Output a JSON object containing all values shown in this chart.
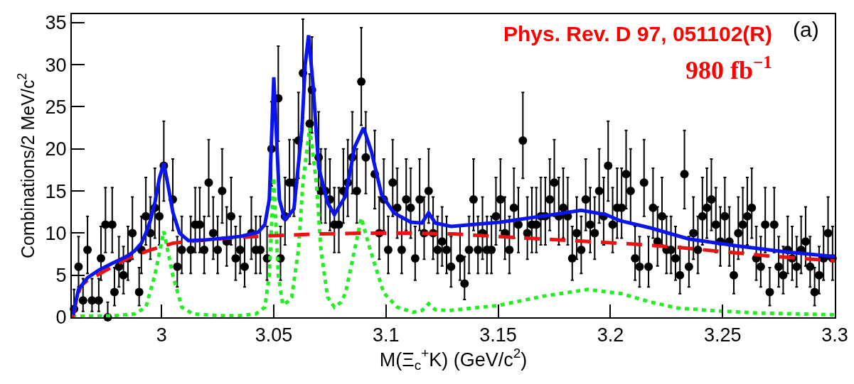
{
  "chart_data": {
    "type": "scatter",
    "xlabel": "M(Ξ$_{c}$$^{+}$K) (GeV/c$^{2}$)",
    "ylabel": "Combinations/2 MeV/c$^{2}$",
    "annotations": [
      "Phys. Rev. D 97, 051102(R)",
      "980 fb$^{−1}$",
      "(a)"
    ],
    "xlim": [
      2.96,
      3.3
    ],
    "xticks": [
      3,
      3.05,
      3.1,
      3.15,
      3.2,
      3.25,
      3.3
    ],
    "ylim": [
      0,
      36
    ],
    "yticks": [
      0,
      5,
      10,
      15,
      20,
      25,
      30,
      35
    ],
    "grid": false,
    "series": [
      {
        "type": "scatter",
        "marker": "circle",
        "color": "#000000",
        "x": [
          2.961,
          2.963,
          2.965,
          2.967,
          2.969,
          2.972,
          2.973,
          2.975,
          2.976,
          2.978,
          2.979,
          2.981,
          2.983,
          2.985,
          2.987,
          2.99,
          2.991,
          2.993,
          2.995,
          2.997,
          2.999,
          3.001,
          3.005,
          3.007,
          3.009,
          3.013,
          3.015,
          3.017,
          3.019,
          3.021,
          3.023,
          3.025,
          3.027,
          3.029,
          3.031,
          3.033,
          3.035,
          3.037,
          3.04,
          3.042,
          3.044,
          3.047,
          3.049,
          3.052,
          3.053,
          3.055,
          3.057,
          3.059,
          3.061,
          3.063,
          3.066,
          3.067,
          3.07,
          3.071,
          3.073,
          3.075,
          3.077,
          3.079,
          3.081,
          3.083,
          3.085,
          3.087,
          3.089,
          3.091,
          3.095,
          3.097,
          3.099,
          3.101,
          3.103,
          3.105,
          3.107,
          3.109,
          3.111,
          3.113,
          3.115,
          3.117,
          3.119,
          3.121,
          3.123,
          3.125,
          3.127,
          3.129,
          3.133,
          3.135,
          3.137,
          3.139,
          3.141,
          3.143,
          3.145,
          3.147,
          3.149,
          3.151,
          3.153,
          3.155,
          3.157,
          3.159,
          3.161,
          3.163,
          3.165,
          3.167,
          3.169,
          3.171,
          3.173,
          3.175,
          3.177,
          3.179,
          3.181,
          3.183,
          3.185,
          3.187,
          3.189,
          3.191,
          3.193,
          3.195,
          3.197,
          3.199,
          3.201,
          3.203,
          3.205,
          3.207,
          3.209,
          3.211,
          3.213,
          3.215,
          3.217,
          3.219,
          3.221,
          3.223,
          3.225,
          3.227,
          3.229,
          3.231,
          3.233,
          3.235,
          3.237,
          3.239,
          3.241,
          3.243,
          3.245,
          3.247,
          3.249,
          3.251,
          3.253,
          3.255,
          3.257,
          3.259,
          3.261,
          3.263,
          3.265,
          3.267,
          3.269,
          3.271,
          3.273,
          3.275,
          3.277,
          3.279,
          3.281,
          3.283,
          3.285,
          3.287,
          3.289,
          3.291,
          3.293,
          3.295,
          3.297,
          3.299
        ],
        "values": [
          1,
          6,
          2,
          8,
          2,
          2,
          7,
          11,
          0,
          11,
          3,
          6,
          5,
          7,
          10,
          3,
          8,
          12,
          10,
          13,
          12,
          18,
          14,
          6,
          8,
          8,
          11,
          11,
          8,
          16,
          10,
          8,
          15,
          9,
          12,
          7,
          8,
          6,
          10,
          8,
          8,
          7,
          20,
          26,
          7,
          12,
          16,
          16,
          21,
          29,
          23,
          27,
          19,
          15,
          15,
          14,
          11,
          11,
          15,
          16,
          19,
          15,
          28,
          19,
          17,
          10,
          14,
          8,
          16,
          13,
          8,
          14,
          13,
          7,
          14,
          10,
          15,
          10,
          8,
          9,
          8,
          6,
          7,
          4,
          8,
          14,
          8,
          10,
          8,
          8,
          12,
          14,
          10,
          8,
          13,
          11,
          21,
          10,
          11,
          11,
          12,
          12,
          14,
          16,
          12,
          13,
          12,
          7,
          10,
          8,
          14,
          11,
          10,
          15,
          12,
          18,
          11,
          13,
          13,
          17,
          15,
          7,
          6,
          16,
          6,
          13,
          9,
          12,
          8,
          8,
          7,
          5,
          17,
          6,
          10,
          8,
          12,
          13,
          14,
          11,
          9,
          12,
          9,
          5,
          10,
          11,
          12,
          13,
          7,
          6,
          11,
          3,
          11,
          6,
          5,
          8,
          7,
          6,
          8,
          9,
          6,
          3,
          5,
          7,
          10,
          7
        ],
        "errors": [
          [
            0.2,
            3.3
          ],
          [
            3.6,
            9.6
          ],
          [
            0.7,
            4.6
          ],
          [
            5.2,
            12
          ],
          [
            0.7,
            4.6
          ],
          [
            0.7,
            4.6
          ],
          [
            4.4,
            10.8
          ],
          [
            7.7,
            15.4
          ],
          [
            0,
            1.8
          ],
          [
            7.7,
            15.4
          ],
          [
            1.4,
            5.9
          ],
          [
            3.6,
            9.6
          ],
          [
            2.8,
            8.4
          ],
          [
            4.4,
            10.8
          ],
          [
            6.9,
            14.3
          ],
          [
            1.4,
            5.9
          ],
          [
            5.2,
            12
          ],
          [
            8.6,
            16.6
          ],
          [
            6.9,
            14.3
          ],
          [
            9.4,
            17.7
          ],
          [
            8.6,
            16.6
          ],
          [
            13.8,
            23.3
          ],
          [
            10.3,
            18.8
          ],
          [
            3.6,
            9.6
          ],
          [
            5.2,
            12
          ],
          [
            5.2,
            12
          ],
          [
            7.7,
            15.4
          ],
          [
            7.7,
            15.4
          ],
          [
            5.2,
            12
          ],
          [
            12,
            21.1
          ],
          [
            6.9,
            14.3
          ],
          [
            5.2,
            12
          ],
          [
            11.2,
            20
          ],
          [
            6.1,
            13.1
          ],
          [
            8.6,
            16.6
          ],
          [
            4.4,
            10.8
          ],
          [
            5.2,
            12
          ],
          [
            3.6,
            9.6
          ],
          [
            6.9,
            14.3
          ],
          [
            5.2,
            12
          ],
          [
            5.2,
            12
          ],
          [
            4.4,
            10.8
          ],
          [
            15.6,
            25.6
          ],
          [
            20.9,
            32.2
          ],
          [
            4.4,
            10.8
          ],
          [
            8.6,
            16.6
          ],
          [
            12,
            21.1
          ],
          [
            12,
            21.1
          ],
          [
            16.5,
            26.7
          ],
          [
            23.7,
            35.4
          ],
          [
            18.2,
            28.9
          ],
          [
            21.9,
            33.3
          ],
          [
            14.7,
            24.4
          ],
          [
            11.2,
            20
          ],
          [
            11.2,
            20
          ],
          [
            10.3,
            18.8
          ],
          [
            7.7,
            15.4
          ],
          [
            7.7,
            15.4
          ],
          [
            11.2,
            20
          ],
          [
            12,
            21.1
          ],
          [
            14.7,
            24.4
          ],
          [
            11.2,
            20
          ],
          [
            22.8,
            34.4
          ],
          [
            14.7,
            24.4
          ],
          [
            12.9,
            22.2
          ],
          [
            6.9,
            14.3
          ],
          [
            10.3,
            18.8
          ],
          [
            5.2,
            12
          ],
          [
            12,
            21.1
          ],
          [
            9.4,
            17.7
          ],
          [
            5.2,
            12
          ],
          [
            10.3,
            18.8
          ],
          [
            9.4,
            17.7
          ],
          [
            4.4,
            10.8
          ],
          [
            10.3,
            18.8
          ],
          [
            6.9,
            14.3
          ],
          [
            11.2,
            20
          ],
          [
            6.9,
            14.3
          ],
          [
            5.2,
            12
          ],
          [
            6.1,
            13.1
          ],
          [
            5.2,
            12
          ],
          [
            3.6,
            9.6
          ],
          [
            4.4,
            10.8
          ],
          [
            2.1,
            7.2
          ],
          [
            5.2,
            12
          ],
          [
            10.3,
            18.8
          ],
          [
            5.2,
            12
          ],
          [
            6.9,
            14.3
          ],
          [
            5.2,
            12
          ],
          [
            5.2,
            12
          ],
          [
            8.6,
            16.6
          ],
          [
            10.3,
            18.8
          ],
          [
            6.9,
            14.3
          ],
          [
            5.2,
            12
          ],
          [
            9.4,
            17.7
          ],
          [
            7.7,
            15.4
          ],
          [
            16.5,
            26.7
          ],
          [
            6.9,
            14.3
          ],
          [
            7.7,
            15.4
          ],
          [
            7.7,
            15.4
          ],
          [
            8.6,
            16.6
          ],
          [
            8.6,
            16.6
          ],
          [
            10.3,
            18.8
          ],
          [
            12,
            21.1
          ],
          [
            8.6,
            16.6
          ],
          [
            9.4,
            17.7
          ],
          [
            8.6,
            16.6
          ],
          [
            4.4,
            10.8
          ],
          [
            6.9,
            14.3
          ],
          [
            5.2,
            12
          ],
          [
            10.3,
            18.8
          ],
          [
            7.7,
            15.4
          ],
          [
            6.9,
            14.3
          ],
          [
            11.2,
            20
          ],
          [
            8.6,
            16.6
          ],
          [
            13.8,
            23.3
          ],
          [
            7.7,
            15.4
          ],
          [
            9.4,
            17.7
          ],
          [
            9.4,
            17.7
          ],
          [
            12.9,
            22.2
          ],
          [
            11.2,
            20
          ],
          [
            4.4,
            10.8
          ],
          [
            3.6,
            9.6
          ],
          [
            12,
            21.1
          ],
          [
            3.6,
            9.6
          ],
          [
            9.4,
            17.7
          ],
          [
            6.1,
            13.1
          ],
          [
            8.6,
            16.6
          ],
          [
            5.2,
            12
          ],
          [
            5.2,
            12
          ],
          [
            4.4,
            10.8
          ],
          [
            2.8,
            8.4
          ],
          [
            12.9,
            22.2
          ],
          [
            3.6,
            9.6
          ],
          [
            6.9,
            14.3
          ],
          [
            5.2,
            12
          ],
          [
            8.6,
            16.6
          ],
          [
            9.4,
            17.7
          ],
          [
            10.3,
            18.8
          ],
          [
            7.7,
            15.4
          ],
          [
            6.1,
            13.1
          ],
          [
            8.6,
            16.6
          ],
          [
            6.1,
            13.1
          ],
          [
            2.8,
            8.4
          ],
          [
            6.9,
            14.3
          ],
          [
            7.7,
            15.4
          ],
          [
            8.6,
            16.6
          ],
          [
            9.4,
            17.7
          ],
          [
            4.4,
            10.8
          ],
          [
            3.6,
            9.6
          ],
          [
            7.7,
            15.4
          ],
          [
            1.4,
            5.9
          ],
          [
            7.7,
            15.4
          ],
          [
            3.6,
            9.6
          ],
          [
            2.8,
            8.4
          ],
          [
            5.2,
            12
          ],
          [
            4.4,
            10.8
          ],
          [
            3.6,
            9.6
          ],
          [
            5.2,
            12
          ],
          [
            6.1,
            13.1
          ],
          [
            3.6,
            9.6
          ],
          [
            1.4,
            5.9
          ],
          [
            2.8,
            8.4
          ],
          [
            4.4,
            10.8
          ],
          [
            6.9,
            14.3
          ],
          [
            4.4,
            10.8
          ]
        ]
      },
      {
        "type": "line",
        "line_style": "dotted",
        "color": "#22ee22",
        "x": [
          2.96,
          2.98,
          2.988,
          2.993,
          2.997,
          3.001,
          3.005,
          3.009,
          3.014,
          3.025,
          3.035,
          3.042,
          3.046,
          3.048,
          3.05,
          3.052,
          3.054,
          3.056,
          3.058,
          3.061,
          3.063,
          3.066,
          3.069,
          3.071,
          3.074,
          3.077,
          3.08,
          3.082,
          3.086,
          3.089,
          3.093,
          3.099,
          3.105,
          3.112,
          3.116,
          3.119,
          3.122,
          3.128,
          3.15,
          3.17,
          3.19,
          3.205,
          3.218,
          3.23,
          3.245,
          3.266,
          3.3
        ],
        "values": [
          0.1,
          0.2,
          0.4,
          1.2,
          5,
          10.2,
          5,
          1.2,
          0.4,
          0.2,
          0.2,
          0.4,
          1.2,
          5,
          16.6,
          5,
          1.5,
          1.8,
          2.4,
          8,
          16,
          22.5,
          16,
          8,
          2.4,
          1.2,
          1.8,
          2.9,
          8,
          11.8,
          8,
          2.9,
          1.2,
          0.6,
          0.8,
          1.6,
          0.9,
          0.8,
          1.4,
          2.5,
          3.3,
          2.8,
          1.8,
          1.1,
          0.8,
          0.5,
          0.3
        ]
      },
      {
        "type": "line",
        "line_style": "dashed",
        "color": "#ee1111",
        "x": [
          2.9605,
          2.962,
          2.964,
          2.967,
          2.972,
          2.978,
          2.985,
          2.995,
          3.005,
          3.02,
          3.035,
          3.05,
          3.07,
          3.09,
          3.11,
          3.13,
          3.15,
          3.17,
          3.19,
          3.21,
          3.23,
          3.25,
          3.27,
          3.29,
          3.3
        ],
        "values": [
          0,
          2,
          3.7,
          4.4,
          5.1,
          6,
          7,
          8,
          8.8,
          9.2,
          9.5,
          9.7,
          9.9,
          10,
          10,
          9.9,
          9.6,
          9.3,
          9,
          8.7,
          8.3,
          7.8,
          7.3,
          6.9,
          6.7
        ]
      },
      {
        "type": "line",
        "line_style": "solid",
        "color": "#0a14ee",
        "x": [
          2.9605,
          2.963,
          2.967,
          2.972,
          2.978,
          2.985,
          2.988,
          2.991,
          2.993,
          2.995,
          2.997,
          2.999,
          3.001,
          3.003,
          3.005,
          3.008,
          3.012,
          3.02,
          3.035,
          3.043,
          3.046,
          3.048,
          3.05,
          3.0525,
          3.055,
          3.059,
          3.0625,
          3.064,
          3.0655,
          3.0675,
          3.07,
          3.074,
          3.077,
          3.082,
          3.086,
          3.09,
          3.0935,
          3.098,
          3.1035,
          3.111,
          3.116,
          3.119,
          3.122,
          3.129,
          3.151,
          3.172,
          3.187,
          3.198,
          3.204,
          3.218,
          3.235,
          3.256,
          3.277,
          3.3
        ],
        "values": [
          0.3,
          3.3,
          4.7,
          5.6,
          6.4,
          7.3,
          7.9,
          8.8,
          10,
          11.5,
          13.6,
          16.5,
          18.3,
          15.5,
          12.5,
          10,
          9.1,
          9.2,
          9.6,
          10.1,
          11,
          14,
          28.5,
          14,
          11.5,
          12.9,
          22.2,
          30,
          33.5,
          27.6,
          17.8,
          13.6,
          12.2,
          14.4,
          20.2,
          22.5,
          19.7,
          14.6,
          12.4,
          11.3,
          11.2,
          12.4,
          11.2,
          10.8,
          11.3,
          12.1,
          12.7,
          12.2,
          11.5,
          10.6,
          9.3,
          8.5,
          7.8,
          7.2
        ]
      }
    ]
  }
}
